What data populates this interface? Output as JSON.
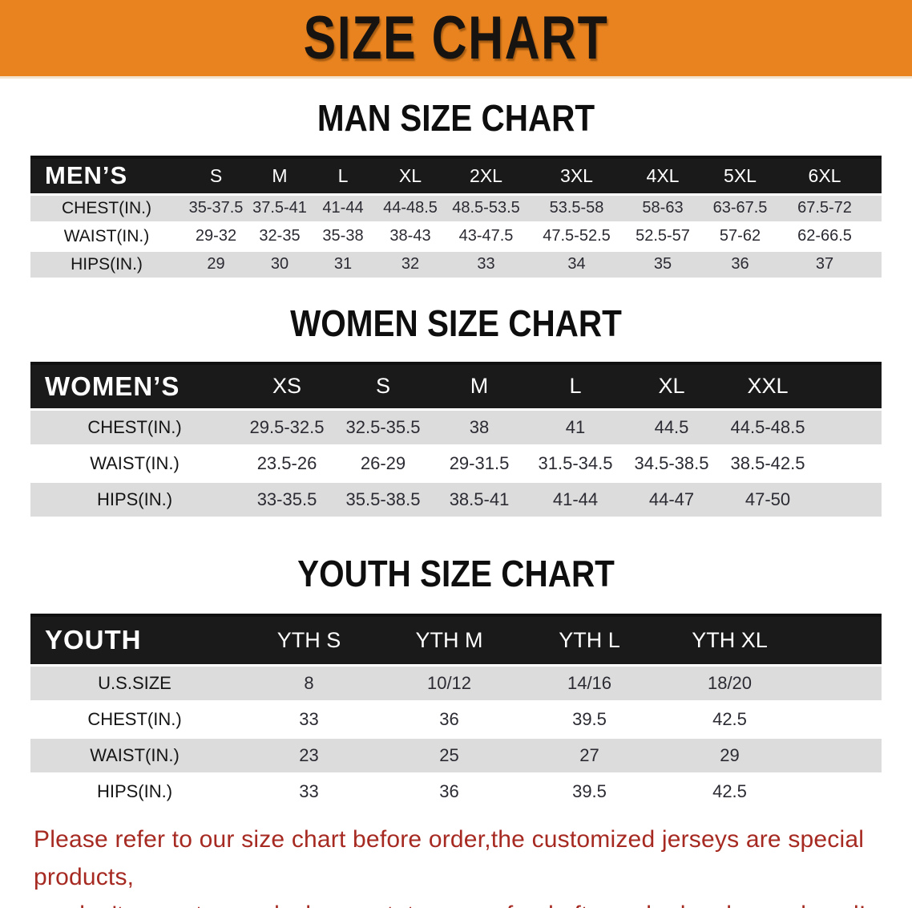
{
  "banner": {
    "title": "SIZE CHART",
    "bg_color": "#E8831F"
  },
  "sections": [
    {
      "heading": "MAN SIZE CHART",
      "table": {
        "header_label": "MEN’S",
        "columns": [
          "S",
          "M",
          "L",
          "XL",
          "2XL",
          "3XL",
          "4XL",
          "5XL",
          "6XL"
        ],
        "rows": [
          {
            "label": "CHEST(IN.)",
            "values": [
              "35-37.5",
              "37.5-41",
              "41-44",
              "44-48.5",
              "48.5-53.5",
              "53.5-58",
              "58-63",
              "63-67.5",
              "67.5-72"
            ]
          },
          {
            "label": "WAIST(IN.)",
            "values": [
              "29-32",
              "32-35",
              "35-38",
              "38-43",
              "43-47.5",
              "47.5-52.5",
              "52.5-57",
              "57-62",
              "62-66.5"
            ]
          },
          {
            "label": "HIPS(IN.)",
            "values": [
              "29",
              "30",
              "31",
              "32",
              "33",
              "34",
              "35",
              "36",
              "37"
            ]
          }
        ]
      }
    },
    {
      "heading": "WOMEN SIZE CHART",
      "table": {
        "header_label": "WOMEN’S",
        "columns": [
          "XS",
          "S",
          "M",
          "L",
          "XL",
          "XXL"
        ],
        "rows": [
          {
            "label": "CHEST(IN.)",
            "values": [
              "29.5-32.5",
              "32.5-35.5",
              "38",
              "41",
              "44.5",
              "44.5-48.5"
            ]
          },
          {
            "label": "WAIST(IN.)",
            "values": [
              "23.5-26",
              "26-29",
              "29-31.5",
              "31.5-34.5",
              "34.5-38.5",
              "38.5-42.5"
            ]
          },
          {
            "label": "HIPS(IN.)",
            "values": [
              "33-35.5",
              "35.5-38.5",
              "38.5-41",
              "41-44",
              "44-47",
              "47-50"
            ]
          }
        ]
      }
    },
    {
      "heading": "YOUTH SIZE CHART",
      "table": {
        "header_label": "YOUTH",
        "columns": [
          "YTH S",
          "YTH M",
          "YTH L",
          "YTH XL"
        ],
        "rows": [
          {
            "label": "U.S.SIZE",
            "values": [
              "8",
              "10/12",
              "14/16",
              "18/20"
            ]
          },
          {
            "label": "CHEST(IN.)",
            "values": [
              "33",
              "36",
              "39.5",
              "42.5"
            ]
          },
          {
            "label": "WAIST(IN.)",
            "values": [
              "23",
              "25",
              "27",
              "29"
            ]
          },
          {
            "label": "HIPS(IN.)",
            "values": [
              "33",
              "36",
              "39.5",
              "42.5"
            ]
          }
        ]
      }
    }
  ],
  "disclaimer": {
    "color": "#A62A22",
    "lines": [
      "Please refer to our size chart before order,the customized jerseys are special products,",
      "we don't accept cancel, change, teturn or refund after order has been placed!"
    ]
  }
}
